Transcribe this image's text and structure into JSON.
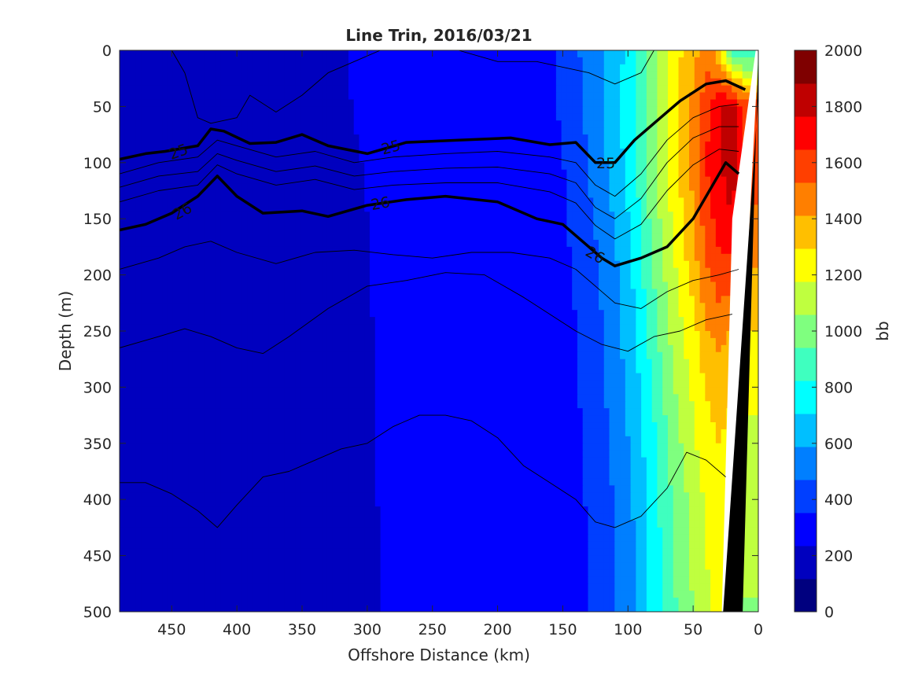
{
  "chart_data": {
    "type": "heatmap",
    "title": "Line Trin, 2016/03/21",
    "xlabel": "Offshore Distance (km)",
    "ylabel": "Depth (m)",
    "colorbar_label": "bb",
    "x_reversed": true,
    "y_reversed": true,
    "xlim": [
      490,
      0
    ],
    "ylim": [
      0,
      500
    ],
    "clim": [
      0,
      2000
    ],
    "xticks": [
      "450",
      "400",
      "350",
      "300",
      "250",
      "200",
      "150",
      "100",
      "50",
      "0"
    ],
    "yticks": [
      "0",
      "50",
      "100",
      "150",
      "200",
      "250",
      "300",
      "350",
      "400",
      "450",
      "500"
    ],
    "colorbar_ticks": [
      "0",
      "200",
      "400",
      "600",
      "800",
      "1000",
      "1200",
      "1400",
      "1600",
      "1800",
      "2000"
    ],
    "colormap": [
      "#00007f",
      "#0000bf",
      "#0000ff",
      "#003fff",
      "#007fff",
      "#00bfff",
      "#00ffff",
      "#3fffbf",
      "#7fff7f",
      "#bfff3f",
      "#ffff00",
      "#ffbf00",
      "#ff7f00",
      "#ff3f00",
      "#ff0000",
      "#bf0000",
      "#7f0000"
    ],
    "field": {
      "note_cols": "x positions in km",
      "x": [
        490,
        460,
        430,
        400,
        370,
        340,
        310,
        280,
        250,
        220,
        190,
        160,
        140,
        125,
        110,
        95,
        80,
        65,
        50,
        40,
        30,
        20,
        10
      ],
      "y": [
        0,
        50,
        100,
        150,
        200,
        250,
        300,
        350,
        400,
        450,
        500
      ],
      "values": [
        [
          180,
          220,
          200,
          180,
          220,
          180,
          250,
          330,
          350,
          320,
          320,
          330,
          450,
          560,
          640,
          800,
          1000,
          1250,
          1350,
          1500,
          1300,
          900,
          800
        ],
        [
          170,
          200,
          180,
          170,
          200,
          170,
          240,
          320,
          330,
          300,
          300,
          320,
          430,
          540,
          650,
          820,
          1050,
          1250,
          1450,
          1600,
          1750,
          1800,
          1600
        ],
        [
          160,
          180,
          160,
          150,
          170,
          160,
          220,
          300,
          310,
          280,
          280,
          300,
          400,
          520,
          640,
          800,
          1050,
          1250,
          1450,
          1650,
          1750,
          1850,
          1600
        ],
        [
          150,
          170,
          150,
          140,
          160,
          150,
          210,
          280,
          290,
          270,
          270,
          290,
          380,
          480,
          600,
          750,
          1000,
          1200,
          1400,
          1600,
          1700,
          1750,
          1500
        ],
        [
          150,
          170,
          150,
          140,
          160,
          150,
          210,
          280,
          280,
          260,
          260,
          280,
          370,
          450,
          560,
          720,
          950,
          1150,
          1350,
          1500,
          1600,
          1600,
          1400
        ],
        [
          150,
          170,
          150,
          140,
          160,
          150,
          200,
          270,
          270,
          260,
          260,
          280,
          350,
          430,
          540,
          700,
          900,
          1100,
          1250,
          1400,
          1450,
          1400,
          1300
        ],
        [
          150,
          160,
          150,
          140,
          160,
          150,
          200,
          260,
          260,
          250,
          250,
          270,
          340,
          420,
          520,
          650,
          850,
          1050,
          1200,
          1300,
          1350,
          1300,
          1200
        ],
        [
          150,
          160,
          150,
          140,
          160,
          150,
          200,
          260,
          260,
          250,
          250,
          270,
          330,
          400,
          500,
          630,
          800,
          1000,
          1150,
          1250,
          1300,
          1250,
          1150
        ],
        [
          150,
          160,
          150,
          140,
          160,
          150,
          200,
          260,
          260,
          250,
          250,
          260,
          320,
          390,
          480,
          600,
          780,
          960,
          1100,
          1200,
          1250,
          1200,
          1100
        ],
        [
          150,
          160,
          150,
          140,
          160,
          150,
          200,
          250,
          250,
          240,
          240,
          260,
          310,
          380,
          470,
          590,
          760,
          940,
          1080,
          1180,
          1220,
          1180,
          1080
        ],
        [
          150,
          160,
          150,
          140,
          160,
          150,
          200,
          250,
          250,
          240,
          240,
          260,
          310,
          380,
          460,
          580,
          750,
          920,
          1060,
          1150,
          1200,
          1150,
          1050
        ]
      ]
    },
    "contours": [
      {
        "label": "25",
        "bold": true,
        "points": [
          [
            490,
            97
          ],
          [
            470,
            92
          ],
          [
            455,
            90
          ],
          [
            430,
            85
          ],
          [
            420,
            70
          ],
          [
            410,
            72
          ],
          [
            390,
            83
          ],
          [
            370,
            82
          ],
          [
            350,
            75
          ],
          [
            330,
            85
          ],
          [
            300,
            92
          ],
          [
            270,
            82
          ],
          [
            230,
            80
          ],
          [
            190,
            78
          ],
          [
            160,
            84
          ],
          [
            140,
            82
          ],
          [
            125,
            100
          ],
          [
            110,
            100
          ],
          [
            95,
            80
          ],
          [
            75,
            60
          ],
          [
            60,
            45
          ],
          [
            40,
            30
          ],
          [
            25,
            27
          ],
          [
            10,
            35
          ]
        ]
      },
      {
        "label": "26",
        "bold": true,
        "points": [
          [
            490,
            160
          ],
          [
            470,
            155
          ],
          [
            450,
            145
          ],
          [
            430,
            130
          ],
          [
            415,
            112
          ],
          [
            400,
            130
          ],
          [
            380,
            145
          ],
          [
            350,
            143
          ],
          [
            330,
            148
          ],
          [
            300,
            138
          ],
          [
            270,
            133
          ],
          [
            240,
            130
          ],
          [
            200,
            135
          ],
          [
            170,
            150
          ],
          [
            150,
            155
          ],
          [
            135,
            170
          ],
          [
            120,
            185
          ],
          [
            110,
            192
          ],
          [
            90,
            185
          ],
          [
            70,
            175
          ],
          [
            50,
            150
          ],
          [
            35,
            120
          ],
          [
            25,
            100
          ],
          [
            15,
            110
          ]
        ]
      },
      {
        "label": "",
        "bold": false,
        "points": [
          [
            490,
            110
          ],
          [
            460,
            100
          ],
          [
            430,
            95
          ],
          [
            415,
            80
          ],
          [
            400,
            85
          ],
          [
            370,
            95
          ],
          [
            340,
            90
          ],
          [
            310,
            100
          ],
          [
            280,
            95
          ],
          [
            240,
            92
          ],
          [
            200,
            90
          ],
          [
            160,
            95
          ],
          [
            140,
            100
          ],
          [
            125,
            120
          ],
          [
            110,
            130
          ],
          [
            90,
            110
          ],
          [
            70,
            80
          ],
          [
            50,
            60
          ],
          [
            30,
            50
          ],
          [
            15,
            48
          ]
        ]
      },
      {
        "label": "",
        "bold": false,
        "points": [
          [
            490,
            122
          ],
          [
            460,
            112
          ],
          [
            430,
            108
          ],
          [
            415,
            92
          ],
          [
            400,
            98
          ],
          [
            370,
            108
          ],
          [
            340,
            103
          ],
          [
            310,
            112
          ],
          [
            280,
            108
          ],
          [
            240,
            105
          ],
          [
            200,
            104
          ],
          [
            160,
            110
          ],
          [
            140,
            118
          ],
          [
            125,
            140
          ],
          [
            110,
            150
          ],
          [
            90,
            132
          ],
          [
            70,
            100
          ],
          [
            50,
            78
          ],
          [
            30,
            68
          ],
          [
            15,
            68
          ]
        ]
      },
      {
        "label": "",
        "bold": false,
        "points": [
          [
            490,
            135
          ],
          [
            460,
            125
          ],
          [
            430,
            120
          ],
          [
            415,
            102
          ],
          [
            400,
            110
          ],
          [
            370,
            120
          ],
          [
            340,
            115
          ],
          [
            310,
            124
          ],
          [
            280,
            120
          ],
          [
            240,
            118
          ],
          [
            200,
            118
          ],
          [
            160,
            126
          ],
          [
            140,
            136
          ],
          [
            125,
            156
          ],
          [
            110,
            168
          ],
          [
            90,
            155
          ],
          [
            70,
            125
          ],
          [
            50,
            102
          ],
          [
            30,
            88
          ],
          [
            15,
            90
          ]
        ]
      },
      {
        "label": "",
        "bold": false,
        "points": [
          [
            490,
            195
          ],
          [
            460,
            185
          ],
          [
            440,
            175
          ],
          [
            420,
            170
          ],
          [
            400,
            180
          ],
          [
            370,
            190
          ],
          [
            340,
            180
          ],
          [
            310,
            178
          ],
          [
            280,
            182
          ],
          [
            250,
            185
          ],
          [
            220,
            180
          ],
          [
            190,
            180
          ],
          [
            160,
            185
          ],
          [
            140,
            195
          ],
          [
            125,
            210
          ],
          [
            110,
            225
          ],
          [
            90,
            230
          ],
          [
            70,
            215
          ],
          [
            50,
            205
          ],
          [
            30,
            200
          ],
          [
            15,
            195
          ]
        ]
      },
      {
        "label": "",
        "bold": false,
        "points": [
          [
            490,
            265
          ],
          [
            460,
            255
          ],
          [
            440,
            248
          ],
          [
            420,
            255
          ],
          [
            400,
            265
          ],
          [
            380,
            270
          ],
          [
            360,
            255
          ],
          [
            330,
            230
          ],
          [
            300,
            210
          ],
          [
            270,
            205
          ],
          [
            240,
            198
          ],
          [
            210,
            200
          ],
          [
            180,
            220
          ],
          [
            160,
            235
          ],
          [
            140,
            250
          ],
          [
            120,
            262
          ],
          [
            100,
            268
          ],
          [
            80,
            255
          ],
          [
            60,
            250
          ],
          [
            40,
            240
          ],
          [
            20,
            235
          ]
        ]
      },
      {
        "label": "",
        "bold": false,
        "points": [
          [
            490,
            385
          ],
          [
            470,
            385
          ],
          [
            450,
            395
          ],
          [
            430,
            410
          ],
          [
            415,
            425
          ],
          [
            400,
            405
          ],
          [
            380,
            380
          ],
          [
            360,
            375
          ],
          [
            340,
            365
          ],
          [
            320,
            355
          ],
          [
            300,
            350
          ],
          [
            280,
            335
          ],
          [
            260,
            325
          ],
          [
            240,
            325
          ],
          [
            220,
            330
          ],
          [
            200,
            345
          ],
          [
            180,
            370
          ],
          [
            160,
            385
          ],
          [
            140,
            400
          ],
          [
            125,
            420
          ],
          [
            110,
            425
          ],
          [
            90,
            415
          ],
          [
            70,
            390
          ],
          [
            55,
            358
          ],
          [
            40,
            365
          ],
          [
            25,
            380
          ]
        ]
      },
      {
        "label": "",
        "bold": false,
        "points": [
          [
            450,
            0
          ],
          [
            440,
            20
          ],
          [
            430,
            60
          ],
          [
            420,
            65
          ],
          [
            400,
            60
          ],
          [
            390,
            40
          ],
          [
            370,
            55
          ],
          [
            350,
            40
          ],
          [
            330,
            20
          ],
          [
            310,
            10
          ],
          [
            290,
            0
          ]
        ]
      },
      {
        "label": "",
        "bold": false,
        "points": [
          [
            230,
            0
          ],
          [
            200,
            10
          ],
          [
            170,
            10
          ],
          [
            150,
            15
          ],
          [
            130,
            20
          ],
          [
            110,
            30
          ],
          [
            90,
            20
          ],
          [
            80,
            0
          ]
        ]
      }
    ],
    "contour_labels": [
      {
        "text": "25",
        "x": 445,
        "y": 90,
        "angle": -20
      },
      {
        "text": "25",
        "x": 282,
        "y": 86,
        "angle": -15
      },
      {
        "text": "25",
        "x": 117,
        "y": 100,
        "angle": 0
      },
      {
        "text": "26",
        "x": 442,
        "y": 143,
        "angle": -28
      },
      {
        "text": "26",
        "x": 290,
        "y": 136,
        "angle": -10
      },
      {
        "text": "26",
        "x": 125,
        "y": 182,
        "angle": 30
      }
    ],
    "seafloor_polygon": [
      [
        26,
        500
      ],
      [
        10,
        500
      ],
      [
        0,
        0
      ],
      [
        0,
        20
      ],
      [
        10,
        500
      ]
    ],
    "seafloor_fill": "#000000",
    "white_gap_polygon": [
      [
        28,
        500
      ],
      [
        20,
        150
      ],
      [
        2,
        0
      ],
      [
        0,
        0
      ],
      [
        0,
        1
      ],
      [
        22,
        500
      ]
    ]
  }
}
